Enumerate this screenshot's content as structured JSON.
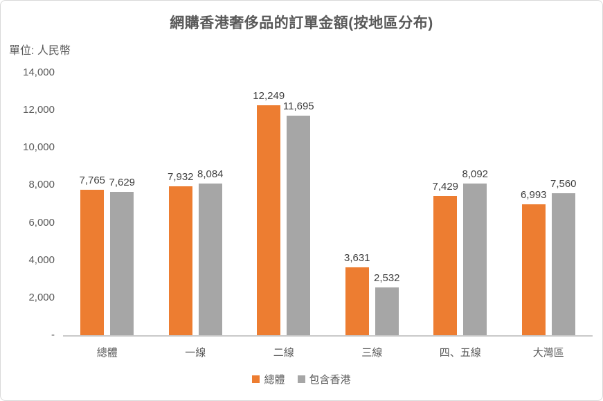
{
  "chart_data": {
    "type": "bar",
    "title": "網購香港奢侈品的訂單金額(按地區分布)",
    "unit_label": "單位: 人民幣",
    "categories": [
      "總體",
      "一線",
      "二線",
      "三線",
      "四、五線",
      "大灣區"
    ],
    "series": [
      {
        "name": "總體",
        "color": "#ED7D31",
        "values": [
          7765,
          7932,
          12249,
          3631,
          7429,
          6993
        ],
        "labels": [
          "7,765",
          "7,932",
          "12,249",
          "3,631",
          "7,429",
          "6,993"
        ]
      },
      {
        "name": "包含香港",
        "color": "#A6A6A6",
        "values": [
          7629,
          8084,
          11695,
          2532,
          8092,
          7560
        ],
        "labels": [
          "7,629",
          "8,084",
          "11,695",
          "2,532",
          "8,092",
          "7,560"
        ]
      }
    ],
    "y_axis": {
      "min": 0,
      "max": 14000,
      "tick_step": 2000,
      "ticks": [
        "14,000",
        "12,000",
        "10,000",
        "8,000",
        "6,000",
        "4,000",
        "2,000",
        "-"
      ]
    },
    "grid": false,
    "legend": {
      "position": "bottom"
    },
    "colors": {
      "title_text": "#595959",
      "axis_text": "#595959",
      "data_label_text": "#404040",
      "axis_line": "#C9C9C9",
      "frame_border": "#D9D9D9"
    }
  }
}
